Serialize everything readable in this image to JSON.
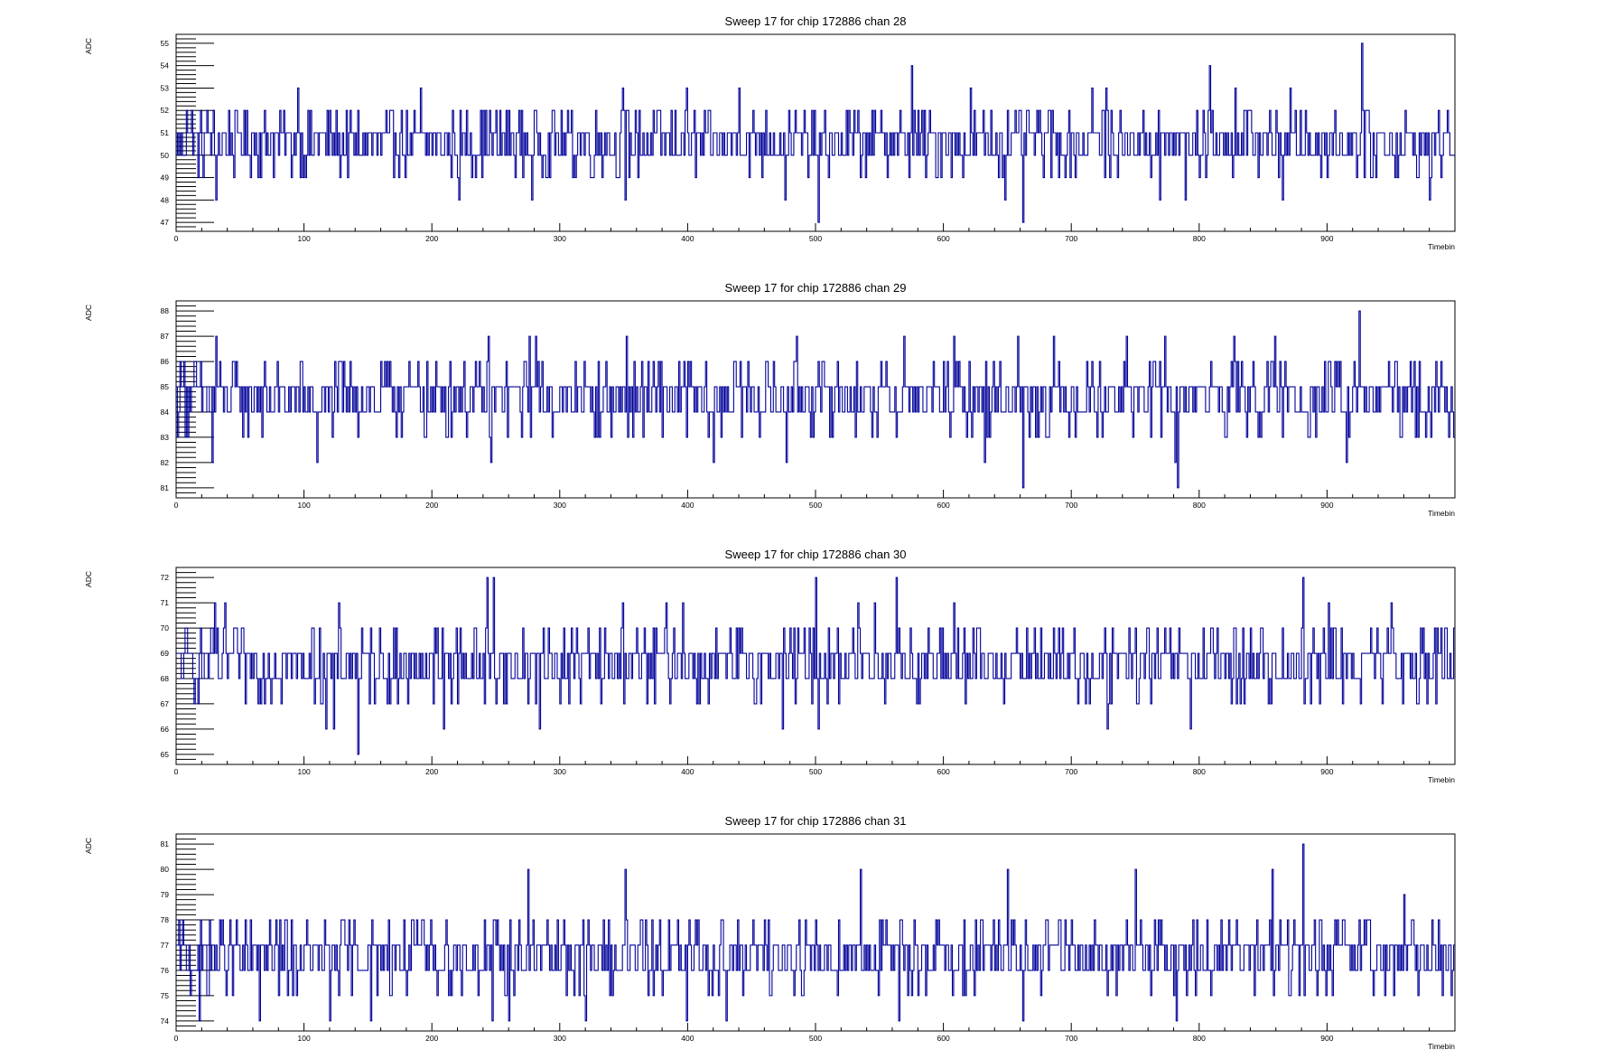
{
  "colors": {
    "line": "#000099",
    "frame": "#000000",
    "background": "#ffffff"
  },
  "chart_data": [
    {
      "type": "line",
      "title": "Sweep 17 for chip 172886 chan 28",
      "xlabel": "Timebin",
      "ylabel": "ADC",
      "xlim": [
        0,
        1000
      ],
      "ylim": [
        46.6,
        55.4
      ],
      "x_ticks": [
        0,
        100,
        200,
        300,
        400,
        500,
        600,
        700,
        800,
        900
      ],
      "y_ticks": [
        47,
        48,
        49,
        50,
        51,
        52,
        53,
        54,
        55
      ],
      "grid": false,
      "legend": "none",
      "baseline": 50.6,
      "choices": [
        49,
        50,
        51,
        52
      ],
      "spikes": [
        [
          8,
          52
        ],
        [
          12,
          52
        ],
        [
          31,
          48
        ],
        [
          95,
          53
        ],
        [
          191,
          53
        ],
        [
          221,
          48
        ],
        [
          278,
          48
        ],
        [
          349,
          53
        ],
        [
          351,
          48
        ],
        [
          399,
          53
        ],
        [
          440,
          53
        ],
        [
          476,
          48
        ],
        [
          502,
          47
        ],
        [
          575,
          54
        ],
        [
          621,
          53
        ],
        [
          648,
          48
        ],
        [
          662,
          47
        ],
        [
          716,
          53
        ],
        [
          727,
          53
        ],
        [
          769,
          48
        ],
        [
          789,
          48
        ],
        [
          808,
          54
        ],
        [
          828,
          53
        ],
        [
          865,
          48
        ],
        [
          871,
          53
        ],
        [
          927,
          55
        ],
        [
          980,
          48
        ]
      ]
    },
    {
      "type": "line",
      "title": "Sweep 17 for chip 172886 chan 29",
      "xlabel": "Timebin",
      "ylabel": "ADC",
      "xlim": [
        0,
        1000
      ],
      "ylim": [
        80.6,
        88.4
      ],
      "x_ticks": [
        0,
        100,
        200,
        300,
        400,
        500,
        600,
        700,
        800,
        900
      ],
      "y_ticks": [
        81,
        82,
        83,
        84,
        85,
        86,
        87,
        88
      ],
      "grid": false,
      "legend": "none",
      "baseline": 84.5,
      "choices": [
        83,
        84,
        85,
        86
      ],
      "spikes": [
        [
          6,
          86
        ],
        [
          28,
          82
        ],
        [
          31,
          87
        ],
        [
          110,
          82
        ],
        [
          244,
          87
        ],
        [
          246,
          82
        ],
        [
          276,
          87
        ],
        [
          281,
          87
        ],
        [
          352,
          87
        ],
        [
          420,
          82
        ],
        [
          477,
          82
        ],
        [
          485,
          87
        ],
        [
          569,
          87
        ],
        [
          608,
          87
        ],
        [
          632,
          82
        ],
        [
          658,
          87
        ],
        [
          662,
          81
        ],
        [
          686,
          87
        ],
        [
          743,
          87
        ],
        [
          773,
          87
        ],
        [
          781,
          82
        ],
        [
          783,
          81
        ],
        [
          827,
          87
        ],
        [
          859,
          87
        ],
        [
          915,
          82
        ],
        [
          925,
          88
        ]
      ]
    },
    {
      "type": "line",
      "title": "Sweep 17 for chip 172886 chan 30",
      "xlabel": "Timebin",
      "ylabel": "ADC",
      "xlim": [
        0,
        1000
      ],
      "ylim": [
        64.6,
        72.4
      ],
      "x_ticks": [
        0,
        100,
        200,
        300,
        400,
        500,
        600,
        700,
        800,
        900
      ],
      "y_ticks": [
        65,
        66,
        67,
        68,
        69,
        70,
        71,
        72
      ],
      "grid": false,
      "legend": "none",
      "baseline": 68.5,
      "choices": [
        67,
        68,
        69,
        70
      ],
      "spikes": [
        [
          30,
          71
        ],
        [
          38,
          71
        ],
        [
          117,
          66
        ],
        [
          123,
          66
        ],
        [
          127,
          71
        ],
        [
          142,
          65
        ],
        [
          209,
          66
        ],
        [
          243,
          72
        ],
        [
          248,
          72
        ],
        [
          284,
          66
        ],
        [
          349,
          71
        ],
        [
          383,
          71
        ],
        [
          396,
          71
        ],
        [
          474,
          66
        ],
        [
          500,
          72
        ],
        [
          502,
          66
        ],
        [
          533,
          71
        ],
        [
          546,
          71
        ],
        [
          563,
          72
        ],
        [
          608,
          71
        ],
        [
          728,
          66
        ],
        [
          793,
          66
        ],
        [
          881,
          72
        ],
        [
          901,
          71
        ],
        [
          950,
          71
        ]
      ]
    },
    {
      "type": "line",
      "title": "Sweep 17 for chip 172886 chan 31",
      "xlabel": "Timebin",
      "ylabel": "ADC",
      "xlim": [
        0,
        1000
      ],
      "ylim": [
        73.6,
        81.4
      ],
      "x_ticks": [
        0,
        100,
        200,
        300,
        400,
        500,
        600,
        700,
        800,
        900
      ],
      "y_ticks": [
        74,
        75,
        76,
        77,
        78,
        79,
        80,
        81
      ],
      "grid": false,
      "legend": "none",
      "baseline": 76.6,
      "choices": [
        75,
        76,
        77,
        78
      ],
      "spikes": [
        [
          18,
          74
        ],
        [
          65,
          74
        ],
        [
          120,
          74
        ],
        [
          152,
          74
        ],
        [
          247,
          74
        ],
        [
          260,
          74
        ],
        [
          275,
          80
        ],
        [
          320,
          74
        ],
        [
          351,
          80
        ],
        [
          399,
          74
        ],
        [
          430,
          74
        ],
        [
          535,
          80
        ],
        [
          565,
          74
        ],
        [
          650,
          80
        ],
        [
          662,
          74
        ],
        [
          750,
          80
        ],
        [
          782,
          74
        ],
        [
          857,
          80
        ],
        [
          881,
          81
        ],
        [
          904,
          75
        ],
        [
          960,
          79
        ]
      ]
    }
  ]
}
